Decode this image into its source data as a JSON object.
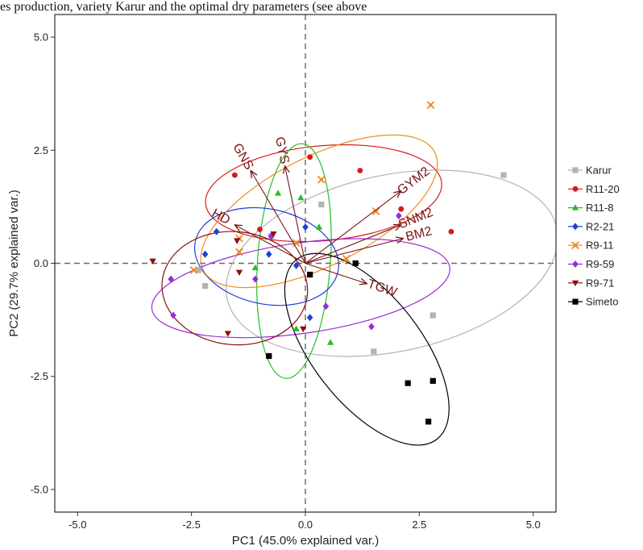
{
  "caption_text": "es production, variety Karur and the optimal dry parameters (see above",
  "chart_data": {
    "type": "scatter",
    "title": "",
    "xlabel": "PC1 (45.0% explained var.)",
    "ylabel": "PC2 (29.7% explained var.)",
    "xlim": [
      -5.5,
      5.5
    ],
    "ylim": [
      -5.5,
      5.5
    ],
    "xticks": [
      -5.0,
      -2.5,
      0.0,
      2.5,
      5.0
    ],
    "yticks": [
      -5.0,
      -2.5,
      0.0,
      2.5,
      5.0
    ],
    "xtick_labels": [
      "-5.0",
      "-2.5",
      "0.0",
      "2.5",
      "5.0"
    ],
    "ytick_labels": [
      "-5.0",
      "-2.5",
      "0.0",
      "2.5",
      "5.0"
    ],
    "grid": false,
    "reference_lines": {
      "x": 0,
      "y": 0,
      "style": "dashed"
    },
    "legend_position": "right",
    "series": [
      {
        "name": "Karur",
        "color": "#b3b3b3",
        "marker": "square",
        "x": [
          4.35,
          0.35,
          -0.75,
          -2.2,
          -2.35,
          1.5,
          2.8
        ],
        "y": [
          1.95,
          1.3,
          0.6,
          -0.5,
          -0.15,
          -1.95,
          -1.15
        ],
        "ellipse": {
          "cx": 1.9,
          "cy": 0.0,
          "rx": 3.7,
          "ry": 1.95,
          "angle": 12
        }
      },
      {
        "name": "R11-20",
        "color": "#d7191c",
        "marker": "circle",
        "x": [
          -1.55,
          0.1,
          1.2,
          2.1,
          3.2,
          -1.0
        ],
        "y": [
          1.95,
          2.35,
          2.05,
          1.2,
          0.7,
          0.75
        ],
        "ellipse": {
          "cx": 0.4,
          "cy": 1.55,
          "rx": 2.6,
          "ry": 1.05,
          "angle": 5
        }
      },
      {
        "name": "R11-8",
        "color": "#21c121",
        "marker": "triangle-up",
        "x": [
          -0.6,
          -0.1,
          0.3,
          -1.1,
          -0.2,
          0.55
        ],
        "y": [
          1.55,
          1.45,
          0.8,
          -0.1,
          -1.45,
          -1.75
        ],
        "ellipse": {
          "cx": -0.25,
          "cy": 0.05,
          "rx": 0.8,
          "ry": 2.6,
          "angle": -4
        }
      },
      {
        "name": "R2-21",
        "color": "#1d3fd4",
        "marker": "diamond",
        "x": [
          -1.95,
          -2.2,
          -0.8,
          0.0,
          0.1,
          -0.2
        ],
        "y": [
          0.7,
          0.2,
          0.2,
          0.8,
          -1.2,
          -0.05
        ],
        "ellipse": {
          "cx": -0.85,
          "cy": 0.15,
          "rx": 1.6,
          "ry": 1.05,
          "angle": -12
        }
      },
      {
        "name": "R9-11",
        "color": "#f28a1c",
        "marker": "asterisk",
        "x": [
          2.75,
          0.35,
          -1.45,
          -1.45,
          -2.45,
          -0.2,
          1.55,
          0.9
        ],
        "y": [
          3.5,
          1.85,
          0.55,
          0.25,
          -0.15,
          0.45,
          1.15,
          0.1
        ],
        "ellipse": {
          "cx": 0.3,
          "cy": 1.15,
          "rx": 2.85,
          "ry": 1.2,
          "angle": 27
        }
      },
      {
        "name": "R9-59",
        "color": "#9a2bd8",
        "marker": "diamond",
        "x": [
          -2.95,
          -2.9,
          -1.1,
          -0.75,
          0.45,
          1.45,
          2.05
        ],
        "y": [
          -0.35,
          -1.15,
          -0.35,
          0.6,
          -0.95,
          -1.4,
          1.05
        ],
        "ellipse": {
          "cx": -0.1,
          "cy": -0.55,
          "rx": 3.3,
          "ry": 1.0,
          "angle": 8
        }
      },
      {
        "name": "R9-71",
        "color": "#8b0f0f",
        "marker": "triangle-down",
        "x": [
          -3.35,
          -1.5,
          -1.45,
          -1.7,
          -0.05,
          -0.7
        ],
        "y": [
          0.05,
          0.5,
          -0.2,
          -1.55,
          -1.45,
          0.65
        ],
        "ellipse": {
          "cx": -1.55,
          "cy": -0.55,
          "rx": 1.6,
          "ry": 1.25,
          "angle": -5
        }
      },
      {
        "name": "Simeto",
        "color": "#000000",
        "marker": "square",
        "x": [
          2.7,
          2.25,
          2.8,
          1.1,
          0.1,
          -0.8
        ],
        "y": [
          -3.5,
          -2.65,
          -2.6,
          0.0,
          -0.25,
          -2.05
        ],
        "ellipse": {
          "cx": 1.35,
          "cy": -1.9,
          "rx": 2.5,
          "ry": 1.2,
          "angle": -52
        }
      }
    ],
    "loadings": {
      "color": "#7a1414",
      "vectors": [
        {
          "label": "GNS",
          "x": -1.2,
          "y": 2.05
        },
        {
          "label": "GYS",
          "x": -0.45,
          "y": 2.15
        },
        {
          "label": "GYM2",
          "x": 2.1,
          "y": 1.6
        },
        {
          "label": "SNM2",
          "x": 2.1,
          "y": 0.85
        },
        {
          "label": "BM2",
          "x": 2.15,
          "y": 0.55
        },
        {
          "label": "TGW",
          "x": 1.35,
          "y": -0.45
        },
        {
          "label": "HD",
          "x": -1.55,
          "y": 0.85
        }
      ]
    }
  }
}
